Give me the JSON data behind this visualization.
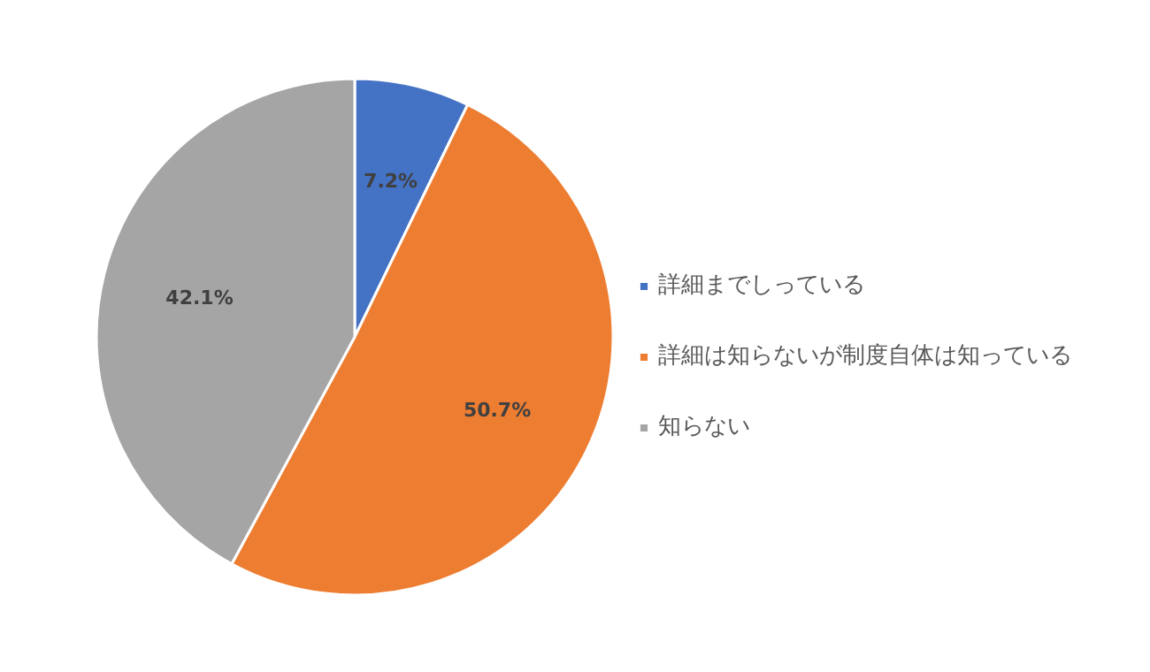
{
  "chart_data": {
    "type": "pie",
    "categories": [
      "詳細までしっている",
      "詳細は知らないが制度自体は知っている",
      "知らない"
    ],
    "values": [
      7.2,
      50.7,
      42.1
    ],
    "colors": [
      "#4472c4",
      "#ed7d31",
      "#a5a5a5"
    ],
    "value_labels": [
      "7.2%",
      "50.7%",
      "42.1%"
    ],
    "legend": "right"
  }
}
